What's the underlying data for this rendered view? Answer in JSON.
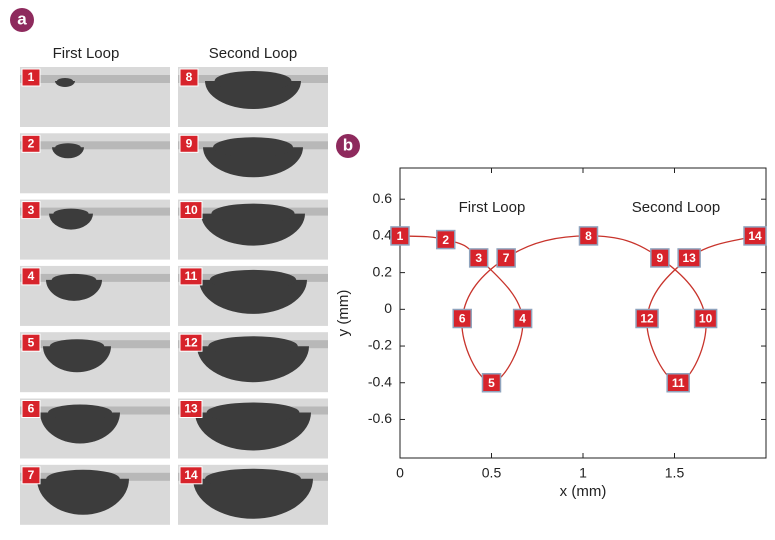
{
  "panel_a": {
    "label": "a",
    "columns": [
      "First Loop",
      "Second Loop"
    ],
    "frames": [
      "1",
      "2",
      "3",
      "4",
      "5",
      "6",
      "7",
      "8",
      "9",
      "10",
      "11",
      "12",
      "13",
      "14"
    ]
  },
  "chart_data": {
    "type": "line",
    "panel_label": "b",
    "xlabel": "x (mm)",
    "ylabel": "y (mm)",
    "annotations": [
      "First Loop",
      "Second Loop"
    ],
    "x": [
      0.0,
      0.25,
      0.43,
      0.67,
      0.5,
      0.34,
      0.58,
      1.03,
      1.42,
      1.67,
      1.52,
      1.35,
      1.58,
      1.94
    ],
    "values": [
      0.4,
      0.38,
      0.28,
      -0.05,
      -0.4,
      -0.05,
      0.28,
      0.4,
      0.28,
      -0.05,
      -0.4,
      -0.05,
      0.28,
      0.4
    ],
    "point_labels": [
      "1",
      "2",
      "3",
      "4",
      "5",
      "6",
      "7",
      "8",
      "9",
      "10",
      "11",
      "12",
      "13",
      "14"
    ],
    "color": "#c8342c",
    "marker_color": "#d7232b",
    "xlim": [
      0,
      2
    ],
    "ylim": [
      -0.81,
      0.77
    ],
    "xticks": [
      0,
      0.5,
      1,
      1.5
    ],
    "yticks": [
      -0.6,
      -0.4,
      -0.2,
      0,
      0.2,
      0.4,
      0.6
    ]
  }
}
